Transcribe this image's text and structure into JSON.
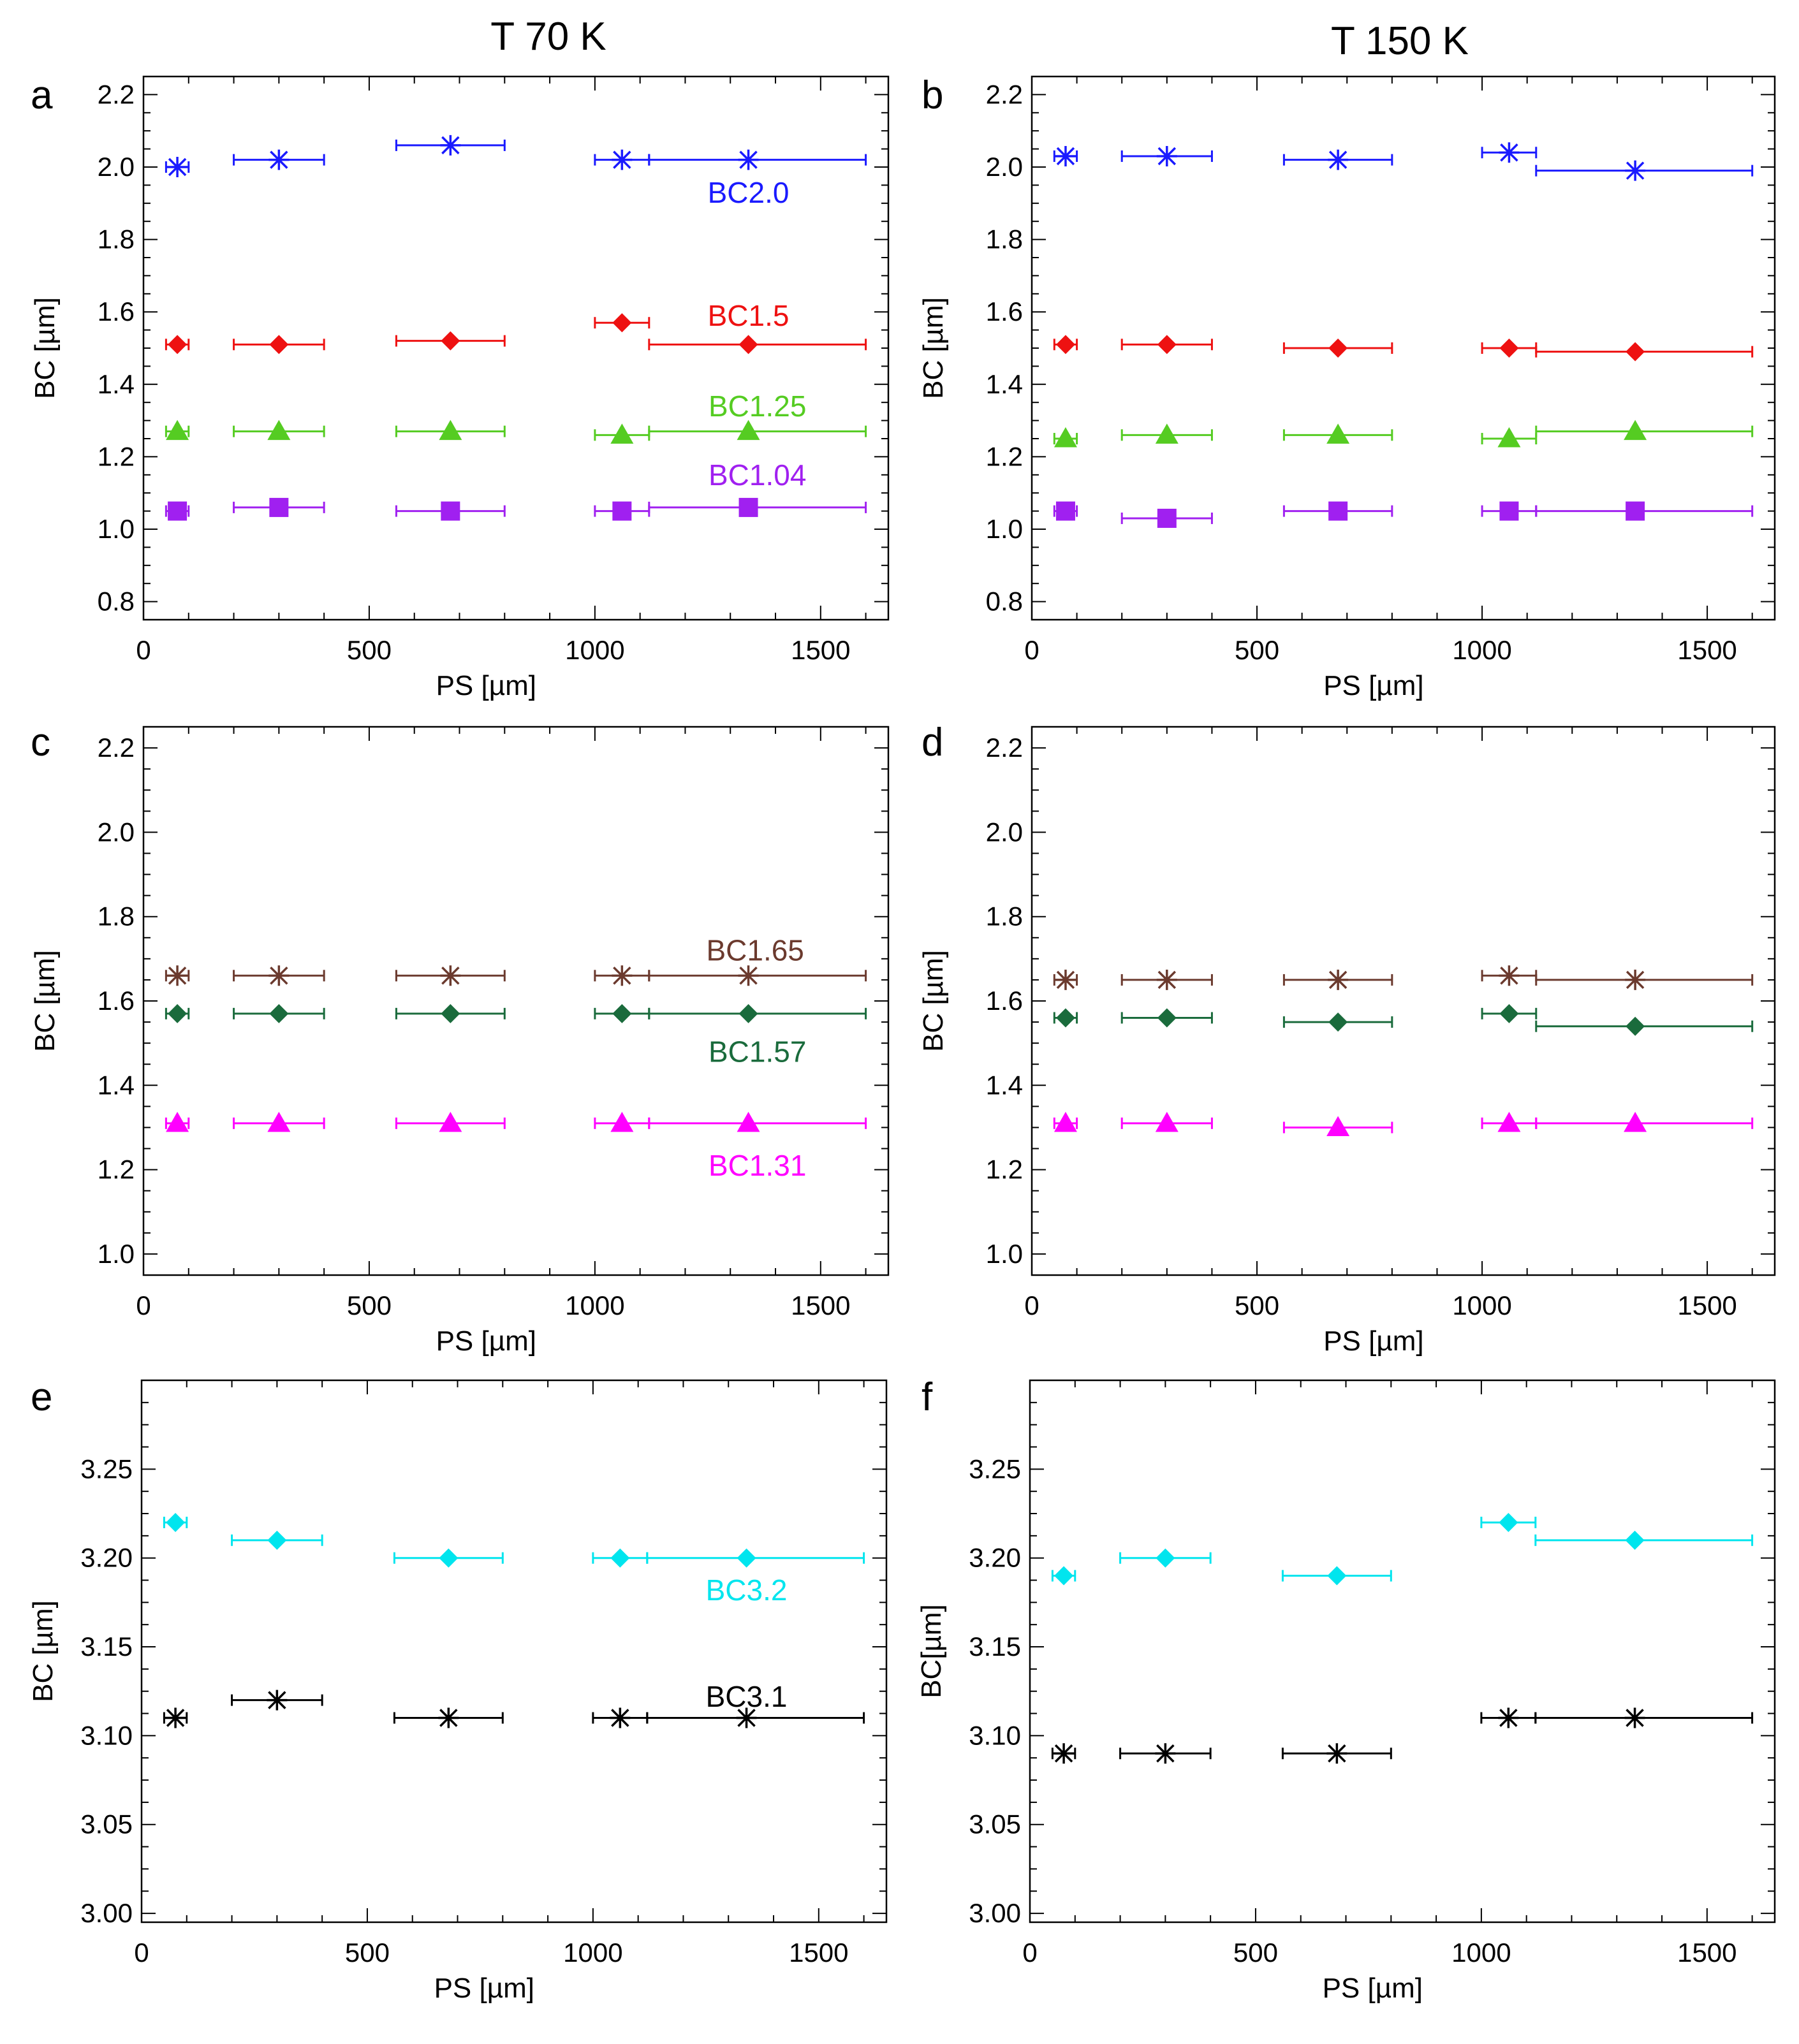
{
  "column_titles": [
    "T 70 K",
    "T 150 K"
  ],
  "colors": {
    "BC2.0": "#1a1aff",
    "BC1.5": "#ee1111",
    "BC1.25": "#55cc22",
    "BC1.04": "#a020f0",
    "BC1.65": "#6b3a2e",
    "BC1.57": "#1a6b3c",
    "BC1.31": "#ff00ff",
    "BC3.2": "#00e5ee",
    "BC3.1": "#000000"
  },
  "chart_data": [
    {
      "panel": "a",
      "type": "scatter",
      "xlabel": "PS [µm]",
      "ylabel": "BC [µm]",
      "xlim": [
        0,
        1650
      ],
      "ylim": [
        0.75,
        2.25
      ],
      "xticks": [
        0,
        500,
        1000,
        1500
      ],
      "xtick_labels": [
        "0",
        "500",
        "1000",
        "1500"
      ],
      "yticks": [
        0.8,
        1.0,
        1.2,
        1.4,
        1.6,
        1.8,
        2.0,
        2.2
      ],
      "ytick_labels": [
        "0.8",
        "1.0",
        "1.2",
        "1.4",
        "1.6",
        "1.8",
        "2.0",
        "2.2"
      ],
      "series": [
        {
          "name": "BC2.0",
          "label": "BC2.0",
          "marker": "asterisk",
          "x": [
            75,
            300,
            680,
            1060,
            1340
          ],
          "y": [
            2.0,
            2.02,
            2.06,
            2.02,
            2.02
          ],
          "xerr": [
            [
              50,
              100
            ],
            [
              200,
              400
            ],
            [
              560,
              800
            ],
            [
              1000,
              1120
            ],
            [
              1120,
              1600
            ]
          ],
          "label_pos": [
            1340,
            1.93
          ]
        },
        {
          "name": "BC1.5",
          "label": "BC1.5",
          "marker": "diamond",
          "x": [
            75,
            300,
            680,
            1060,
            1340
          ],
          "y": [
            1.51,
            1.51,
            1.52,
            1.57,
            1.51
          ],
          "xerr": [
            [
              50,
              100
            ],
            [
              200,
              400
            ],
            [
              560,
              800
            ],
            [
              1000,
              1120
            ],
            [
              1120,
              1600
            ]
          ],
          "label_pos": [
            1340,
            1.59
          ]
        },
        {
          "name": "BC1.25",
          "label": "BC1.25",
          "marker": "triangle",
          "x": [
            75,
            300,
            680,
            1060,
            1340
          ],
          "y": [
            1.27,
            1.27,
            1.27,
            1.26,
            1.27
          ],
          "xerr": [
            [
              50,
              100
            ],
            [
              200,
              400
            ],
            [
              560,
              800
            ],
            [
              1000,
              1120
            ],
            [
              1120,
              1600
            ]
          ],
          "label_pos": [
            1360,
            1.34
          ]
        },
        {
          "name": "BC1.04",
          "label": "BC1.04",
          "marker": "square",
          "x": [
            75,
            300,
            680,
            1060,
            1340
          ],
          "y": [
            1.05,
            1.06,
            1.05,
            1.05,
            1.06
          ],
          "xerr": [
            [
              50,
              100
            ],
            [
              200,
              400
            ],
            [
              560,
              800
            ],
            [
              1000,
              1120
            ],
            [
              1120,
              1600
            ]
          ],
          "label_pos": [
            1360,
            1.15
          ]
        }
      ]
    },
    {
      "panel": "b",
      "type": "scatter",
      "xlabel": "PS [µm]",
      "ylabel": "BC [µm]",
      "xlim": [
        0,
        1650
      ],
      "ylim": [
        0.75,
        2.25
      ],
      "xticks": [
        0,
        500,
        1000,
        1500
      ],
      "xtick_labels": [
        "0",
        "500",
        "1000",
        "1500"
      ],
      "yticks": [
        0.8,
        1.0,
        1.2,
        1.4,
        1.6,
        1.8,
        2.0,
        2.2
      ],
      "ytick_labels": [
        "0.8",
        "1.0",
        "1.2",
        "1.4",
        "1.6",
        "1.8",
        "2.0",
        "2.2"
      ],
      "series": [
        {
          "name": "BC2.0",
          "label": "",
          "marker": "asterisk",
          "x": [
            75,
            300,
            680,
            1060,
            1340
          ],
          "y": [
            2.03,
            2.03,
            2.02,
            2.04,
            1.99
          ],
          "xerr": [
            [
              50,
              100
            ],
            [
              200,
              400
            ],
            [
              560,
              800
            ],
            [
              1000,
              1120
            ],
            [
              1120,
              1600
            ]
          ],
          "label_pos": [
            0,
            0
          ]
        },
        {
          "name": "BC1.5",
          "label": "",
          "marker": "diamond",
          "x": [
            75,
            300,
            680,
            1060,
            1340
          ],
          "y": [
            1.51,
            1.51,
            1.5,
            1.5,
            1.49
          ],
          "xerr": [
            [
              50,
              100
            ],
            [
              200,
              400
            ],
            [
              560,
              800
            ],
            [
              1000,
              1120
            ],
            [
              1120,
              1600
            ]
          ],
          "label_pos": [
            0,
            0
          ]
        },
        {
          "name": "BC1.25",
          "label": "",
          "marker": "triangle",
          "x": [
            75,
            300,
            680,
            1060,
            1340
          ],
          "y": [
            1.25,
            1.26,
            1.26,
            1.25,
            1.27
          ],
          "xerr": [
            [
              50,
              100
            ],
            [
              200,
              400
            ],
            [
              560,
              800
            ],
            [
              1000,
              1120
            ],
            [
              1120,
              1600
            ]
          ],
          "label_pos": [
            0,
            0
          ]
        },
        {
          "name": "BC1.04",
          "label": "",
          "marker": "square",
          "x": [
            75,
            300,
            680,
            1060,
            1340
          ],
          "y": [
            1.05,
            1.03,
            1.05,
            1.05,
            1.05
          ],
          "xerr": [
            [
              50,
              100
            ],
            [
              200,
              400
            ],
            [
              560,
              800
            ],
            [
              1000,
              1120
            ],
            [
              1120,
              1600
            ]
          ],
          "label_pos": [
            0,
            0
          ]
        }
      ]
    },
    {
      "panel": "c",
      "type": "scatter",
      "xlabel": "PS [µm]",
      "ylabel": "BC [µm]",
      "xlim": [
        0,
        1650
      ],
      "ylim": [
        0.95,
        2.25
      ],
      "xticks": [
        0,
        500,
        1000,
        1500
      ],
      "xtick_labels": [
        "0",
        "500",
        "1000",
        "1500"
      ],
      "yticks": [
        1.0,
        1.2,
        1.4,
        1.6,
        1.8,
        2.0,
        2.2
      ],
      "ytick_labels": [
        "1.0",
        "1.2",
        "1.4",
        "1.6",
        "1.8",
        "2.0",
        "2.2"
      ],
      "series": [
        {
          "name": "BC1.65",
          "label": "BC1.65",
          "marker": "asterisk",
          "x": [
            75,
            300,
            680,
            1060,
            1340
          ],
          "y": [
            1.66,
            1.66,
            1.66,
            1.66,
            1.66
          ],
          "xerr": [
            [
              50,
              100
            ],
            [
              200,
              400
            ],
            [
              560,
              800
            ],
            [
              1000,
              1120
            ],
            [
              1120,
              1600
            ]
          ],
          "label_pos": [
            1355,
            1.72
          ]
        },
        {
          "name": "BC1.57",
          "label": "BC1.57",
          "marker": "diamond",
          "x": [
            75,
            300,
            680,
            1060,
            1340
          ],
          "y": [
            1.57,
            1.57,
            1.57,
            1.57,
            1.57
          ],
          "xerr": [
            [
              50,
              100
            ],
            [
              200,
              400
            ],
            [
              560,
              800
            ],
            [
              1000,
              1120
            ],
            [
              1120,
              1600
            ]
          ],
          "label_pos": [
            1360,
            1.48
          ]
        },
        {
          "name": "BC1.31",
          "label": "BC1.31",
          "marker": "triangle",
          "x": [
            75,
            300,
            680,
            1060,
            1340
          ],
          "y": [
            1.31,
            1.31,
            1.31,
            1.31,
            1.31
          ],
          "xerr": [
            [
              50,
              100
            ],
            [
              200,
              400
            ],
            [
              560,
              800
            ],
            [
              1000,
              1120
            ],
            [
              1120,
              1600
            ]
          ],
          "label_pos": [
            1360,
            1.21
          ]
        }
      ]
    },
    {
      "panel": "d",
      "type": "scatter",
      "xlabel": "PS [µm]",
      "ylabel": "BC [µm]",
      "xlim": [
        0,
        1650
      ],
      "ylim": [
        0.95,
        2.25
      ],
      "xticks": [
        0,
        500,
        1000,
        1500
      ],
      "xtick_labels": [
        "0",
        "500",
        "1000",
        "1500"
      ],
      "yticks": [
        1.0,
        1.2,
        1.4,
        1.6,
        1.8,
        2.0,
        2.2
      ],
      "ytick_labels": [
        "1.0",
        "1.2",
        "1.4",
        "1.6",
        "1.8",
        "2.0",
        "2.2"
      ],
      "series": [
        {
          "name": "BC1.65",
          "label": "",
          "marker": "asterisk",
          "x": [
            75,
            300,
            680,
            1060,
            1340
          ],
          "y": [
            1.65,
            1.65,
            1.65,
            1.66,
            1.65
          ],
          "xerr": [
            [
              50,
              100
            ],
            [
              200,
              400
            ],
            [
              560,
              800
            ],
            [
              1000,
              1120
            ],
            [
              1120,
              1600
            ]
          ],
          "label_pos": [
            0,
            0
          ]
        },
        {
          "name": "BC1.57",
          "label": "",
          "marker": "diamond",
          "x": [
            75,
            300,
            680,
            1060,
            1340
          ],
          "y": [
            1.56,
            1.56,
            1.55,
            1.57,
            1.54
          ],
          "xerr": [
            [
              50,
              100
            ],
            [
              200,
              400
            ],
            [
              560,
              800
            ],
            [
              1000,
              1120
            ],
            [
              1120,
              1600
            ]
          ],
          "label_pos": [
            0,
            0
          ]
        },
        {
          "name": "BC1.31",
          "label": "",
          "marker": "triangle",
          "x": [
            75,
            300,
            680,
            1060,
            1340
          ],
          "y": [
            1.31,
            1.31,
            1.3,
            1.31,
            1.31
          ],
          "xerr": [
            [
              50,
              100
            ],
            [
              200,
              400
            ],
            [
              560,
              800
            ],
            [
              1000,
              1120
            ],
            [
              1120,
              1600
            ]
          ],
          "label_pos": [
            0,
            0
          ]
        }
      ]
    },
    {
      "panel": "e",
      "type": "scatter",
      "xlabel": "PS [µm]",
      "ylabel": "BC [µm]",
      "xlim": [
        0,
        1650
      ],
      "ylim": [
        2.995,
        3.3
      ],
      "xticks": [
        0,
        500,
        1000,
        1500
      ],
      "xtick_labels": [
        "0",
        "500",
        "1000",
        "1500"
      ],
      "yticks": [
        3.0,
        3.05,
        3.1,
        3.15,
        3.2,
        3.25
      ],
      "ytick_labels": [
        "3.00",
        "3.05",
        "3.10",
        "3.15",
        "3.20",
        "3.25"
      ],
      "series": [
        {
          "name": "BC3.2",
          "label": "BC3.2",
          "marker": "diamond",
          "x": [
            75,
            300,
            680,
            1060,
            1340
          ],
          "y": [
            3.22,
            3.21,
            3.2,
            3.2,
            3.2
          ],
          "xerr": [
            [
              50,
              100
            ],
            [
              200,
              400
            ],
            [
              560,
              800
            ],
            [
              1000,
              1120
            ],
            [
              1120,
              1600
            ]
          ],
          "label_pos": [
            1340,
            3.182
          ]
        },
        {
          "name": "BC3.1",
          "label": "BC3.1",
          "marker": "asterisk",
          "x": [
            75,
            300,
            680,
            1060,
            1340
          ],
          "y": [
            3.11,
            3.12,
            3.11,
            3.11,
            3.11
          ],
          "xerr": [
            [
              50,
              100
            ],
            [
              200,
              400
            ],
            [
              560,
              800
            ],
            [
              1000,
              1120
            ],
            [
              1120,
              1600
            ]
          ],
          "label_pos": [
            1340,
            3.122
          ]
        }
      ]
    },
    {
      "panel": "f",
      "type": "scatter",
      "xlabel": "PS [µm]",
      "ylabel": "BC[µm]",
      "xlim": [
        0,
        1650
      ],
      "ylim": [
        2.995,
        3.3
      ],
      "xticks": [
        0,
        500,
        1000,
        1500
      ],
      "xtick_labels": [
        "0",
        "500",
        "1000",
        "1500"
      ],
      "yticks": [
        3.0,
        3.05,
        3.1,
        3.15,
        3.2,
        3.25
      ],
      "ytick_labels": [
        "3.00",
        "3.05",
        "3.10",
        "3.15",
        "3.20",
        "3.25"
      ],
      "series": [
        {
          "name": "BC3.2",
          "label": "",
          "marker": "diamond",
          "x": [
            75,
            300,
            680,
            1060,
            1340
          ],
          "y": [
            3.19,
            3.2,
            3.19,
            3.22,
            3.21
          ],
          "xerr": [
            [
              50,
              100
            ],
            [
              200,
              400
            ],
            [
              560,
              800
            ],
            [
              1000,
              1120
            ],
            [
              1120,
              1600
            ]
          ],
          "label_pos": [
            0,
            0
          ]
        },
        {
          "name": "BC3.1",
          "label": "",
          "marker": "asterisk",
          "x": [
            75,
            300,
            680,
            1060,
            1340
          ],
          "y": [
            3.09,
            3.09,
            3.09,
            3.11,
            3.11
          ],
          "xerr": [
            [
              50,
              100
            ],
            [
              200,
              400
            ],
            [
              560,
              800
            ],
            [
              1000,
              1120
            ],
            [
              1120,
              1600
            ]
          ],
          "label_pos": [
            0,
            0
          ]
        }
      ]
    }
  ]
}
